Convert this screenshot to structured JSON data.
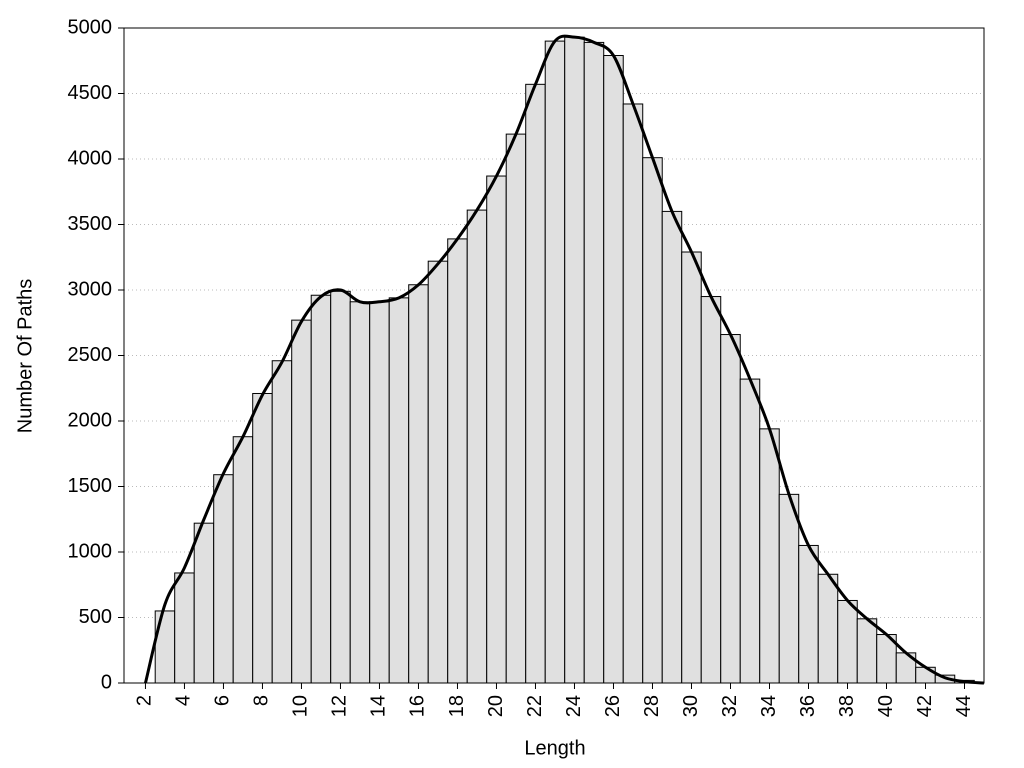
{
  "chart_data": {
    "type": "histogram",
    "xlabel": "Length",
    "ylabel": "Number Of Paths",
    "bins": [
      2.5,
      3.5,
      4.5,
      5.5,
      6.5,
      7.5,
      8.5,
      9.5,
      10.5,
      11.5,
      12.5,
      13.5,
      14.5,
      15.5,
      16.5,
      17.5,
      18.5,
      19.5,
      20.5,
      21.5,
      22.5,
      23.5,
      24.5,
      25.5,
      26.5,
      27.5,
      28.5,
      29.5,
      30.5,
      31.5,
      32.5,
      33.5,
      34.5,
      35.5,
      36.5,
      37.5,
      38.5,
      39.5,
      40.5,
      41.5,
      42.5,
      43.5,
      44.5
    ],
    "counts": [
      550,
      840,
      1220,
      1590,
      1880,
      2210,
      2460,
      2770,
      2960,
      2990,
      2910,
      2910,
      2940,
      3040,
      3220,
      3390,
      3610,
      3870,
      4190,
      4570,
      4900,
      4930,
      4890,
      4790,
      4420,
      4010,
      3600,
      3290,
      2950,
      2660,
      2320,
      1940,
      1440,
      1050,
      830,
      630,
      490,
      370,
      230,
      120,
      60,
      20
    ],
    "color": "#e0e0e0",
    "line": {
      "color": "#000000",
      "x": [
        2,
        3,
        4,
        5,
        6,
        7,
        8,
        9,
        10,
        11,
        12,
        13,
        14,
        15,
        16,
        17,
        18,
        19,
        20,
        21,
        22,
        23,
        24,
        25,
        26,
        27,
        28,
        29,
        30,
        31,
        32,
        33,
        34,
        35,
        36,
        37,
        38,
        39,
        40,
        41,
        42,
        43,
        44,
        45
      ],
      "values": [
        0,
        600,
        880,
        1250,
        1600,
        1880,
        2200,
        2450,
        2760,
        2950,
        3000,
        2910,
        2910,
        2940,
        3040,
        3200,
        3390,
        3610,
        3870,
        4190,
        4570,
        4900,
        4930,
        4890,
        4790,
        4420,
        4010,
        3600,
        3290,
        2950,
        2660,
        2320,
        1940,
        1440,
        1050,
        830,
        630,
        490,
        370,
        230,
        120,
        40,
        10,
        0
      ]
    },
    "xlim": [
      0.9,
      45
    ],
    "ylim": [
      0,
      5000
    ],
    "xticks": [
      2,
      4,
      6,
      8,
      10,
      12,
      14,
      16,
      18,
      20,
      22,
      24,
      26,
      28,
      30,
      32,
      34,
      36,
      38,
      40,
      42,
      44
    ],
    "yticks": [
      0,
      500,
      1000,
      1500,
      2000,
      2500,
      3000,
      3500,
      4000,
      4500,
      5000
    ],
    "grid": true
  }
}
